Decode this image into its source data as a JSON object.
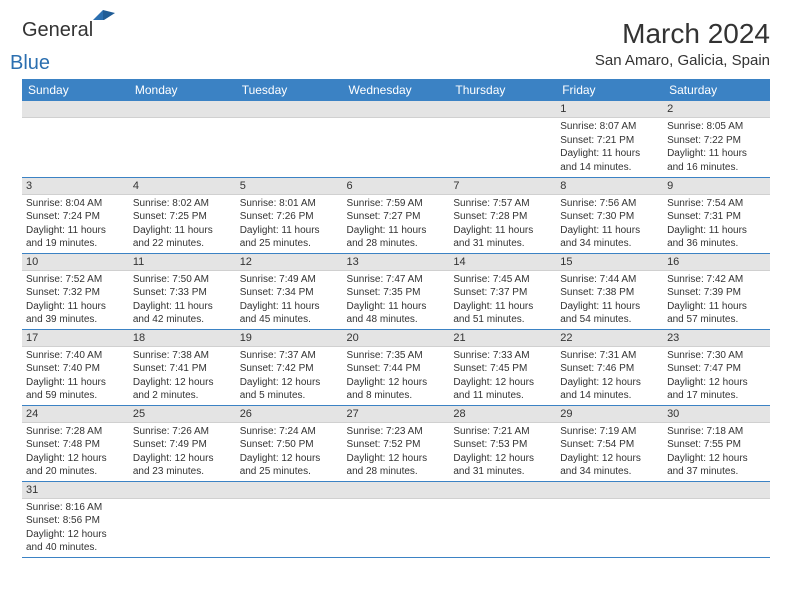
{
  "logo": {
    "general": "General",
    "blue": "Blue"
  },
  "title": "March 2024",
  "location": "San Amaro, Galicia, Spain",
  "colors": {
    "header_bg": "#3b82c4",
    "header_fg": "#ffffff",
    "daynum_bg": "#e4e4e4",
    "row_divider": "#3b82c4",
    "text": "#333333",
    "logo_blue": "#2b6fb0"
  },
  "weekdays": [
    "Sunday",
    "Monday",
    "Tuesday",
    "Wednesday",
    "Thursday",
    "Friday",
    "Saturday"
  ],
  "weeks": [
    [
      {
        "n": "",
        "sr": "",
        "ss": "",
        "dl": ""
      },
      {
        "n": "",
        "sr": "",
        "ss": "",
        "dl": ""
      },
      {
        "n": "",
        "sr": "",
        "ss": "",
        "dl": ""
      },
      {
        "n": "",
        "sr": "",
        "ss": "",
        "dl": ""
      },
      {
        "n": "",
        "sr": "",
        "ss": "",
        "dl": ""
      },
      {
        "n": "1",
        "sr": "Sunrise: 8:07 AM",
        "ss": "Sunset: 7:21 PM",
        "dl": "Daylight: 11 hours and 14 minutes."
      },
      {
        "n": "2",
        "sr": "Sunrise: 8:05 AM",
        "ss": "Sunset: 7:22 PM",
        "dl": "Daylight: 11 hours and 16 minutes."
      }
    ],
    [
      {
        "n": "3",
        "sr": "Sunrise: 8:04 AM",
        "ss": "Sunset: 7:24 PM",
        "dl": "Daylight: 11 hours and 19 minutes."
      },
      {
        "n": "4",
        "sr": "Sunrise: 8:02 AM",
        "ss": "Sunset: 7:25 PM",
        "dl": "Daylight: 11 hours and 22 minutes."
      },
      {
        "n": "5",
        "sr": "Sunrise: 8:01 AM",
        "ss": "Sunset: 7:26 PM",
        "dl": "Daylight: 11 hours and 25 minutes."
      },
      {
        "n": "6",
        "sr": "Sunrise: 7:59 AM",
        "ss": "Sunset: 7:27 PM",
        "dl": "Daylight: 11 hours and 28 minutes."
      },
      {
        "n": "7",
        "sr": "Sunrise: 7:57 AM",
        "ss": "Sunset: 7:28 PM",
        "dl": "Daylight: 11 hours and 31 minutes."
      },
      {
        "n": "8",
        "sr": "Sunrise: 7:56 AM",
        "ss": "Sunset: 7:30 PM",
        "dl": "Daylight: 11 hours and 34 minutes."
      },
      {
        "n": "9",
        "sr": "Sunrise: 7:54 AM",
        "ss": "Sunset: 7:31 PM",
        "dl": "Daylight: 11 hours and 36 minutes."
      }
    ],
    [
      {
        "n": "10",
        "sr": "Sunrise: 7:52 AM",
        "ss": "Sunset: 7:32 PM",
        "dl": "Daylight: 11 hours and 39 minutes."
      },
      {
        "n": "11",
        "sr": "Sunrise: 7:50 AM",
        "ss": "Sunset: 7:33 PM",
        "dl": "Daylight: 11 hours and 42 minutes."
      },
      {
        "n": "12",
        "sr": "Sunrise: 7:49 AM",
        "ss": "Sunset: 7:34 PM",
        "dl": "Daylight: 11 hours and 45 minutes."
      },
      {
        "n": "13",
        "sr": "Sunrise: 7:47 AM",
        "ss": "Sunset: 7:35 PM",
        "dl": "Daylight: 11 hours and 48 minutes."
      },
      {
        "n": "14",
        "sr": "Sunrise: 7:45 AM",
        "ss": "Sunset: 7:37 PM",
        "dl": "Daylight: 11 hours and 51 minutes."
      },
      {
        "n": "15",
        "sr": "Sunrise: 7:44 AM",
        "ss": "Sunset: 7:38 PM",
        "dl": "Daylight: 11 hours and 54 minutes."
      },
      {
        "n": "16",
        "sr": "Sunrise: 7:42 AM",
        "ss": "Sunset: 7:39 PM",
        "dl": "Daylight: 11 hours and 57 minutes."
      }
    ],
    [
      {
        "n": "17",
        "sr": "Sunrise: 7:40 AM",
        "ss": "Sunset: 7:40 PM",
        "dl": "Daylight: 11 hours and 59 minutes."
      },
      {
        "n": "18",
        "sr": "Sunrise: 7:38 AM",
        "ss": "Sunset: 7:41 PM",
        "dl": "Daylight: 12 hours and 2 minutes."
      },
      {
        "n": "19",
        "sr": "Sunrise: 7:37 AM",
        "ss": "Sunset: 7:42 PM",
        "dl": "Daylight: 12 hours and 5 minutes."
      },
      {
        "n": "20",
        "sr": "Sunrise: 7:35 AM",
        "ss": "Sunset: 7:44 PM",
        "dl": "Daylight: 12 hours and 8 minutes."
      },
      {
        "n": "21",
        "sr": "Sunrise: 7:33 AM",
        "ss": "Sunset: 7:45 PM",
        "dl": "Daylight: 12 hours and 11 minutes."
      },
      {
        "n": "22",
        "sr": "Sunrise: 7:31 AM",
        "ss": "Sunset: 7:46 PM",
        "dl": "Daylight: 12 hours and 14 minutes."
      },
      {
        "n": "23",
        "sr": "Sunrise: 7:30 AM",
        "ss": "Sunset: 7:47 PM",
        "dl": "Daylight: 12 hours and 17 minutes."
      }
    ],
    [
      {
        "n": "24",
        "sr": "Sunrise: 7:28 AM",
        "ss": "Sunset: 7:48 PM",
        "dl": "Daylight: 12 hours and 20 minutes."
      },
      {
        "n": "25",
        "sr": "Sunrise: 7:26 AM",
        "ss": "Sunset: 7:49 PM",
        "dl": "Daylight: 12 hours and 23 minutes."
      },
      {
        "n": "26",
        "sr": "Sunrise: 7:24 AM",
        "ss": "Sunset: 7:50 PM",
        "dl": "Daylight: 12 hours and 25 minutes."
      },
      {
        "n": "27",
        "sr": "Sunrise: 7:23 AM",
        "ss": "Sunset: 7:52 PM",
        "dl": "Daylight: 12 hours and 28 minutes."
      },
      {
        "n": "28",
        "sr": "Sunrise: 7:21 AM",
        "ss": "Sunset: 7:53 PM",
        "dl": "Daylight: 12 hours and 31 minutes."
      },
      {
        "n": "29",
        "sr": "Sunrise: 7:19 AM",
        "ss": "Sunset: 7:54 PM",
        "dl": "Daylight: 12 hours and 34 minutes."
      },
      {
        "n": "30",
        "sr": "Sunrise: 7:18 AM",
        "ss": "Sunset: 7:55 PM",
        "dl": "Daylight: 12 hours and 37 minutes."
      }
    ],
    [
      {
        "n": "31",
        "sr": "Sunrise: 8:16 AM",
        "ss": "Sunset: 8:56 PM",
        "dl": "Daylight: 12 hours and 40 minutes."
      },
      {
        "n": "",
        "sr": "",
        "ss": "",
        "dl": ""
      },
      {
        "n": "",
        "sr": "",
        "ss": "",
        "dl": ""
      },
      {
        "n": "",
        "sr": "",
        "ss": "",
        "dl": ""
      },
      {
        "n": "",
        "sr": "",
        "ss": "",
        "dl": ""
      },
      {
        "n": "",
        "sr": "",
        "ss": "",
        "dl": ""
      },
      {
        "n": "",
        "sr": "",
        "ss": "",
        "dl": ""
      }
    ]
  ]
}
